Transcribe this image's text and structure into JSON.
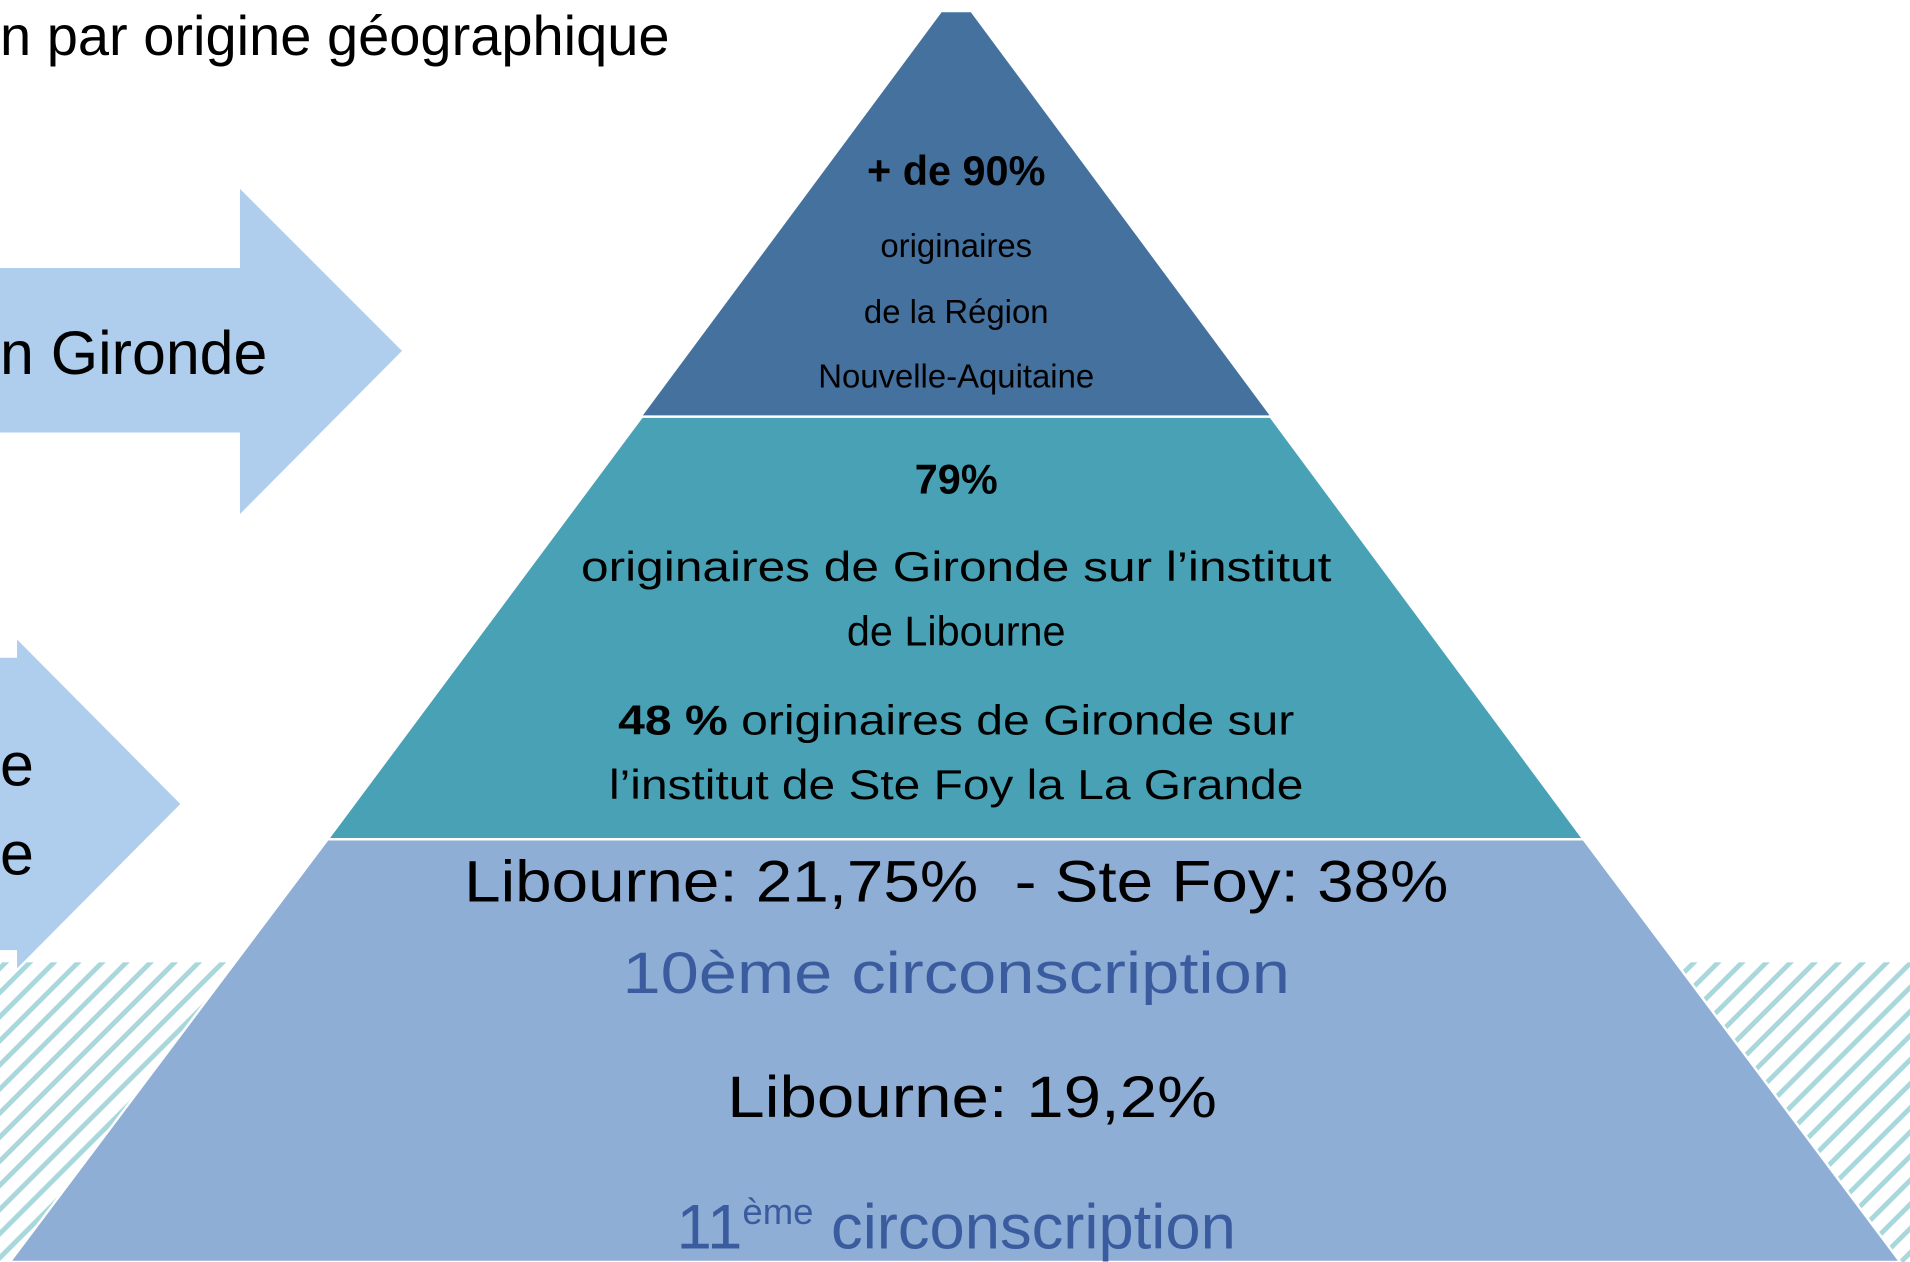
{
  "header": {
    "title": "n par origine géographique"
  },
  "arrows": [
    {
      "label": "n Gironde"
    },
    {
      "lines": [
        "e",
        "e"
      ]
    }
  ],
  "pyramid": {
    "top": {
      "headline": "+ de 90%",
      "lines": [
        "originaires",
        "de la Région",
        "Nouvelle-Aquitaine"
      ]
    },
    "middle": {
      "headline": "79%",
      "lines": [
        "originaires de Gironde sur l’institut",
        "de Libourne"
      ],
      "second_bold": "48 %",
      "second_rest": " originaires de Gironde sur",
      "second_line2": "l’institut de Ste Foy la La Grande"
    },
    "bottom": {
      "line1": "Libourne: 21,75%  - Ste Foy: 38%",
      "line2": "10ème circonscription",
      "line3": "Libourne: 19,2%",
      "line4_number": "11",
      "line4_sup": "ème",
      "line4_rest": " circonscription"
    }
  }
}
